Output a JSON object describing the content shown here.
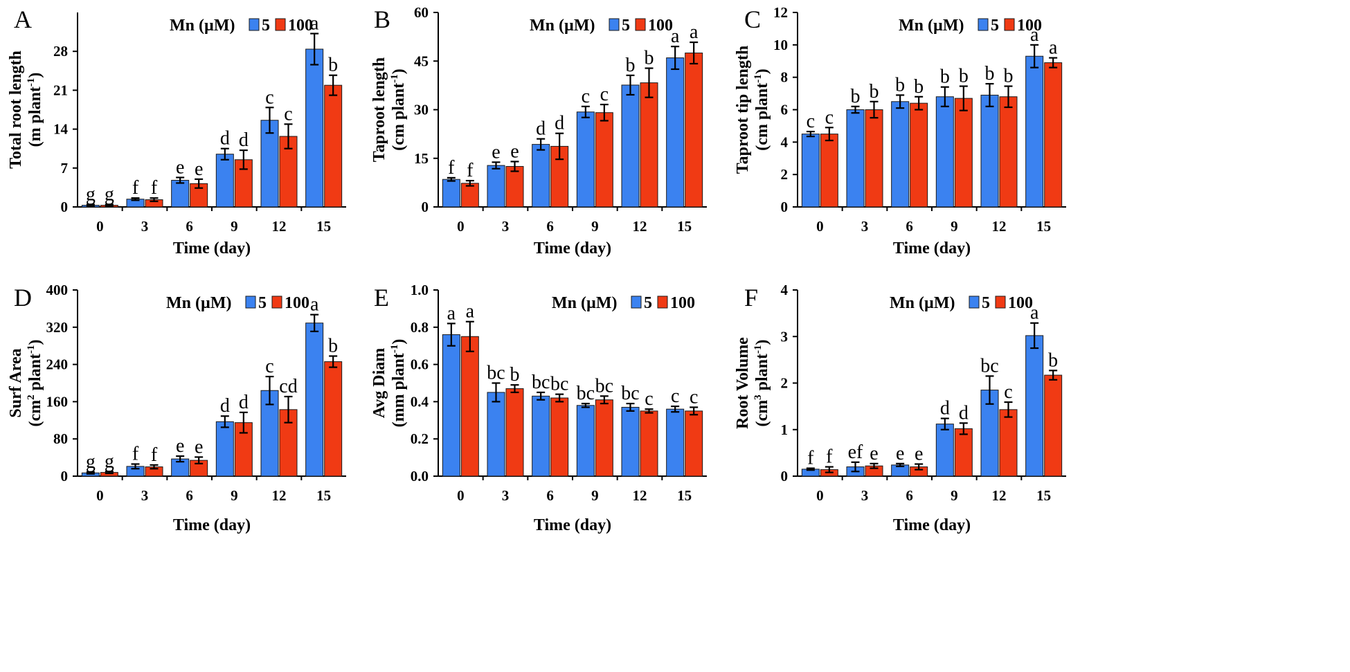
{
  "figure": {
    "x_title": "Time (day)",
    "legend": {
      "title": "Mn (µM)",
      "items": [
        "5",
        "100"
      ]
    },
    "series_colors": {
      "5": "#3b82f0",
      "100": "#f03a14"
    }
  },
  "chart_data": [
    {
      "panel": "A",
      "type": "bar",
      "ylabel_line1": "Total root length",
      "ylabel_unit": "(m plant",
      "ylim": [
        0,
        35
      ],
      "yticks": [
        "0",
        "7",
        "14",
        "21",
        "28"
      ],
      "ytick_values": [
        0,
        7,
        14,
        21,
        28
      ],
      "xlabel": "Time (day)",
      "categories": [
        "0",
        "3",
        "6",
        "9",
        "12",
        "15"
      ],
      "series": [
        {
          "name": "5",
          "values": [
            0.3,
            1.4,
            4.8,
            9.5,
            15.6,
            28.4
          ],
          "errors": [
            0.15,
            0.2,
            0.5,
            1.0,
            2.3,
            2.8
          ],
          "labels": [
            "g",
            "f",
            "e",
            "d",
            "c",
            "a"
          ]
        },
        {
          "name": "100",
          "values": [
            0.3,
            1.3,
            4.2,
            8.5,
            12.7,
            21.9
          ],
          "errors": [
            0.15,
            0.3,
            0.8,
            1.7,
            2.2,
            1.8
          ],
          "labels": [
            "g",
            "f",
            "e",
            "d",
            "c",
            "b"
          ]
        }
      ]
    },
    {
      "panel": "B",
      "type": "bar",
      "ylabel_line1": "Taproot length",
      "ylabel_unit": "(cm plant",
      "ylim": [
        0,
        60
      ],
      "yticks": [
        "0",
        "15",
        "30",
        "45",
        "60"
      ],
      "ytick_values": [
        0,
        15,
        30,
        45,
        60
      ],
      "xlabel": "Time (day)",
      "categories": [
        "0",
        "3",
        "6",
        "9",
        "12",
        "15"
      ],
      "series": [
        {
          "name": "5",
          "values": [
            8.5,
            12.8,
            19.3,
            29.3,
            37.6,
            46.0
          ],
          "errors": [
            0.5,
            1.0,
            1.7,
            1.7,
            3.0,
            3.5
          ],
          "labels": [
            "f",
            "e",
            "d",
            "c",
            "b",
            "a"
          ]
        },
        {
          "name": "100",
          "values": [
            7.3,
            12.5,
            18.7,
            29.1,
            38.3,
            47.5
          ],
          "errors": [
            0.8,
            1.5,
            4.0,
            2.5,
            4.5,
            3.3
          ],
          "labels": [
            "f",
            "e",
            "d",
            "c",
            "b",
            "a"
          ]
        }
      ]
    },
    {
      "panel": "C",
      "type": "bar",
      "ylabel_line1": "Taproot tip length",
      "ylabel_unit": "(cm plant",
      "ylim": [
        0,
        12
      ],
      "yticks": [
        "0",
        "2",
        "4",
        "6",
        "8",
        "10",
        "12"
      ],
      "ytick_values": [
        0,
        2,
        4,
        6,
        8,
        10,
        12
      ],
      "xlabel": "Time (day)",
      "categories": [
        "0",
        "3",
        "6",
        "9",
        "12",
        "15"
      ],
      "series": [
        {
          "name": "5",
          "values": [
            4.5,
            6.0,
            6.5,
            6.8,
            6.9,
            9.3
          ],
          "errors": [
            0.15,
            0.2,
            0.4,
            0.6,
            0.7,
            0.7
          ],
          "labels": [
            "c",
            "b",
            "b",
            "b",
            "b",
            "a"
          ]
        },
        {
          "name": "100",
          "values": [
            4.5,
            6.0,
            6.4,
            6.7,
            6.8,
            8.9
          ],
          "errors": [
            0.4,
            0.5,
            0.4,
            0.75,
            0.65,
            0.3
          ],
          "labels": [
            "c",
            "b",
            "b",
            "b",
            "b",
            "a"
          ]
        }
      ]
    },
    {
      "panel": "D",
      "type": "bar",
      "ylabel_line1": "Surf Area",
      "ylabel_unit": "(cm",
      "ylim": [
        0,
        400
      ],
      "yticks": [
        "0",
        "80",
        "160",
        "240",
        "320",
        "400"
      ],
      "ytick_values": [
        0,
        80,
        160,
        240,
        320,
        400
      ],
      "xlabel": "Time (day)",
      "categories": [
        "0",
        "3",
        "6",
        "9",
        "12",
        "15"
      ],
      "series": [
        {
          "name": "5",
          "values": [
            7,
            21,
            37,
            117,
            184,
            329
          ],
          "errors": [
            2,
            5,
            6,
            12,
            30,
            18
          ],
          "labels": [
            "g",
            "f",
            "e",
            "d",
            "c",
            "a"
          ]
        },
        {
          "name": "100",
          "values": [
            8,
            20,
            34,
            115,
            143,
            246
          ],
          "errors": [
            2,
            4,
            7,
            22,
            28,
            12
          ],
          "labels": [
            "g",
            "f",
            "e",
            "d",
            "cd",
            "b"
          ]
        }
      ]
    },
    {
      "panel": "E",
      "type": "bar",
      "ylabel_line1": "Avg Diam",
      "ylabel_unit": "(mm plant",
      "ylim": [
        0,
        1.0
      ],
      "yticks": [
        "0.0",
        "0.2",
        "0.4",
        "0.6",
        "0.8",
        "1.0"
      ],
      "ytick_values": [
        0,
        0.2,
        0.4,
        0.6,
        0.8,
        1.0
      ],
      "xlabel": "Time (day)",
      "categories": [
        "0",
        "3",
        "6",
        "9",
        "12",
        "15"
      ],
      "series": [
        {
          "name": "5",
          "values": [
            0.76,
            0.45,
            0.43,
            0.38,
            0.37,
            0.36
          ],
          "errors": [
            0.06,
            0.05,
            0.02,
            0.01,
            0.02,
            0.015
          ],
          "labels": [
            "a",
            "bc",
            "bc",
            "bc",
            "bc",
            "c"
          ]
        },
        {
          "name": "100",
          "values": [
            0.75,
            0.47,
            0.42,
            0.41,
            0.35,
            0.35
          ],
          "errors": [
            0.08,
            0.02,
            0.02,
            0.02,
            0.01,
            0.02
          ],
          "labels": [
            "a",
            "b",
            "bc",
            "bc",
            "c",
            "c"
          ]
        }
      ]
    },
    {
      "panel": "F",
      "type": "bar",
      "ylabel_line1": "Root Volume",
      "ylabel_unit": "(cm",
      "ylim": [
        0,
        4
      ],
      "yticks": [
        "0",
        "1",
        "2",
        "3",
        "4"
      ],
      "ytick_values": [
        0,
        1,
        2,
        3,
        4
      ],
      "xlabel": "Time (day)",
      "categories": [
        "0",
        "3",
        "6",
        "9",
        "12",
        "15"
      ],
      "series": [
        {
          "name": "5",
          "values": [
            0.15,
            0.2,
            0.24,
            1.12,
            1.85,
            3.02
          ],
          "errors": [
            0.02,
            0.1,
            0.03,
            0.12,
            0.3,
            0.27
          ],
          "labels": [
            "f",
            "ef",
            "e",
            "d",
            "bc",
            "a"
          ]
        },
        {
          "name": "100",
          "values": [
            0.14,
            0.22,
            0.2,
            1.02,
            1.43,
            2.17
          ],
          "errors": [
            0.06,
            0.05,
            0.06,
            0.12,
            0.16,
            0.1
          ],
          "labels": [
            "f",
            "e",
            "e",
            "d",
            "c",
            "b"
          ]
        }
      ]
    }
  ]
}
